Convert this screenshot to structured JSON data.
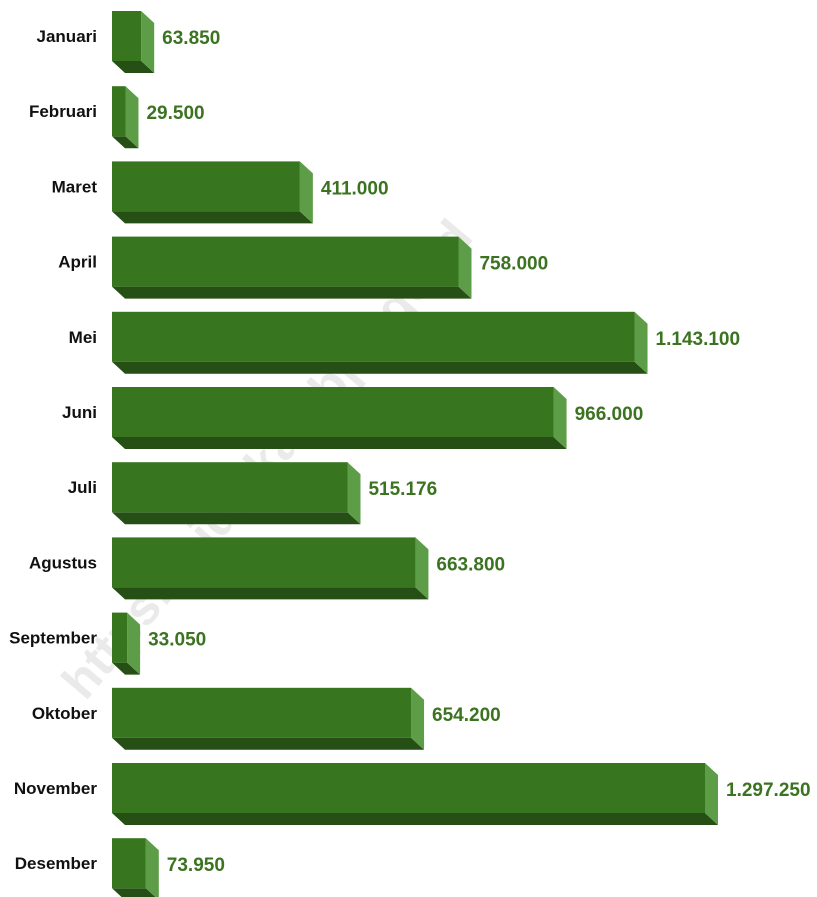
{
  "chart_data": {
    "type": "bar",
    "orientation": "horizontal",
    "style": "3d",
    "categories": [
      "Januari",
      "Februari",
      "Maret",
      "April",
      "Mei",
      "Juni",
      "Juli",
      "Agustus",
      "September",
      "Oktober",
      "November",
      "Desember"
    ],
    "values": [
      63850,
      29500,
      411000,
      758000,
      1143100,
      966000,
      515176,
      663800,
      33050,
      654200,
      1297250,
      73950
    ],
    "value_labels": [
      "63.850",
      "29.500",
      "411.000",
      "758.000",
      "1.143.100",
      "966.000",
      "515.176",
      "663.800",
      "33.050",
      "654.200",
      "1.297.250",
      "73.950"
    ],
    "grid": false,
    "legend": "none"
  },
  "watermark": "https://pidiekab.bps.go.id",
  "colors": {
    "bar_front": "#37761e",
    "bar_side": "#5e9d47",
    "bar_bottom": "#254f14",
    "value_text": "#3b7321",
    "category_text": "#111111"
  }
}
